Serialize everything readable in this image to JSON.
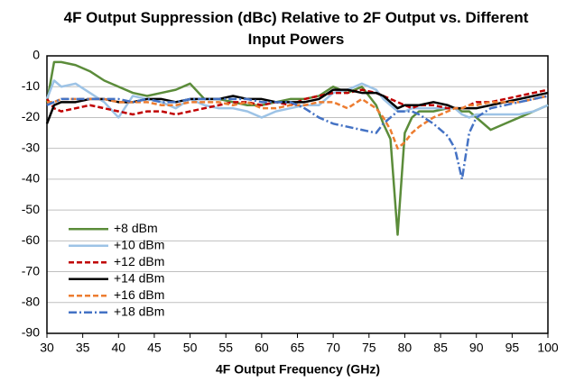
{
  "chart_data": {
    "type": "line",
    "title": "4F Output Suppression (dBc) Relative to 2F Output vs. Different Input Powers",
    "x_label": "4F Output Frequency (GHz)",
    "x": [
      30,
      31,
      32,
      34,
      36,
      38,
      40,
      42,
      44,
      46,
      48,
      50,
      52,
      54,
      56,
      58,
      60,
      62,
      64,
      66,
      68,
      70,
      72,
      74,
      76,
      77,
      78,
      79,
      80,
      81,
      82,
      84,
      86,
      87,
      88,
      89,
      90,
      92,
      94,
      96,
      98,
      100
    ],
    "xlim": [
      30,
      100
    ],
    "xticks": [
      30,
      35,
      40,
      45,
      50,
      55,
      60,
      65,
      70,
      75,
      80,
      85,
      90,
      95,
      100
    ],
    "ylim": [
      -90,
      0
    ],
    "yticks": [
      0,
      -10,
      -20,
      -30,
      -40,
      -50,
      -60,
      -70,
      -80,
      -90
    ],
    "grid": true,
    "legend": "lower left",
    "series": [
      {
        "name": "+8 dBm",
        "color": "#5b8c3a",
        "dash": "solid",
        "values": [
          -15,
          -2,
          -2,
          -3,
          -5,
          -8,
          -10,
          -12,
          -13,
          -12,
          -11,
          -9,
          -14,
          -14,
          -15,
          -16,
          -16,
          -15,
          -14,
          -14,
          -13,
          -10,
          -12,
          -10,
          -16,
          -22,
          -27,
          -58,
          -25,
          -20,
          -18,
          -18,
          -17,
          -17,
          -18,
          -18,
          -20,
          -24,
          -22,
          -20,
          -18,
          -16
        ]
      },
      {
        "name": "+10 dBm",
        "color": "#9dc3e6",
        "dash": "solid",
        "values": [
          -14,
          -8,
          -10,
          -9,
          -12,
          -15,
          -20,
          -13,
          -14,
          -15,
          -17,
          -14,
          -16,
          -17,
          -17,
          -18,
          -20,
          -18,
          -17,
          -16,
          -16,
          -12,
          -11,
          -9,
          -11,
          -14,
          -16,
          -18,
          -18,
          -17,
          -17,
          -17,
          -17,
          -17,
          -19,
          -20,
          -19,
          -19,
          -19,
          -19,
          -18,
          -16
        ]
      },
      {
        "name": "+12 dBm",
        "color": "#c00000",
        "dash": "dash",
        "values": [
          -14,
          -17,
          -18,
          -17,
          -16,
          -17,
          -18,
          -19,
          -18,
          -18,
          -19,
          -18,
          -17,
          -16,
          -15,
          -15,
          -16,
          -15,
          -16,
          -14,
          -13,
          -12,
          -12,
          -11,
          -12,
          -13,
          -14,
          -15,
          -16,
          -17,
          -16,
          -16,
          -17,
          -17,
          -17,
          -16,
          -15,
          -15,
          -14,
          -13,
          -12,
          -11
        ]
      },
      {
        "name": "+14 dBm",
        "color": "#000000",
        "dash": "solid",
        "values": [
          -22,
          -16,
          -15,
          -15,
          -14,
          -14,
          -15,
          -15,
          -14,
          -14,
          -15,
          -14,
          -14,
          -14,
          -13,
          -14,
          -14,
          -15,
          -15,
          -15,
          -14,
          -11,
          -11,
          -12,
          -12,
          -13,
          -15,
          -17,
          -16,
          -16,
          -16,
          -15,
          -16,
          -17,
          -17,
          -17,
          -17,
          -16,
          -15,
          -14,
          -13,
          -12
        ]
      },
      {
        "name": "+16 dBm",
        "color": "#ed7d31",
        "dash": "dash",
        "values": [
          -15,
          -15,
          -14,
          -14,
          -14,
          -14,
          -15,
          -15,
          -15,
          -16,
          -16,
          -15,
          -15,
          -15,
          -16,
          -15,
          -17,
          -17,
          -16,
          -16,
          -15,
          -15,
          -17,
          -14,
          -17,
          -20,
          -24,
          -30,
          -28,
          -25,
          -23,
          -20,
          -18,
          -17,
          -17,
          -16,
          -16,
          -15,
          -15,
          -15,
          -14,
          -13
        ]
      },
      {
        "name": "+18 dBm",
        "color": "#4472c4",
        "dash": "dashdot",
        "values": [
          -16,
          -15,
          -14,
          -14,
          -14,
          -14,
          -14,
          -15,
          -14,
          -15,
          -15,
          -14,
          -14,
          -14,
          -14,
          -14,
          -15,
          -15,
          -15,
          -17,
          -20,
          -22,
          -23,
          -24,
          -25,
          -22,
          -20,
          -18,
          -18,
          -18,
          -19,
          -22,
          -26,
          -30,
          -40,
          -25,
          -20,
          -17,
          -16,
          -15,
          -14,
          -13
        ]
      }
    ]
  }
}
